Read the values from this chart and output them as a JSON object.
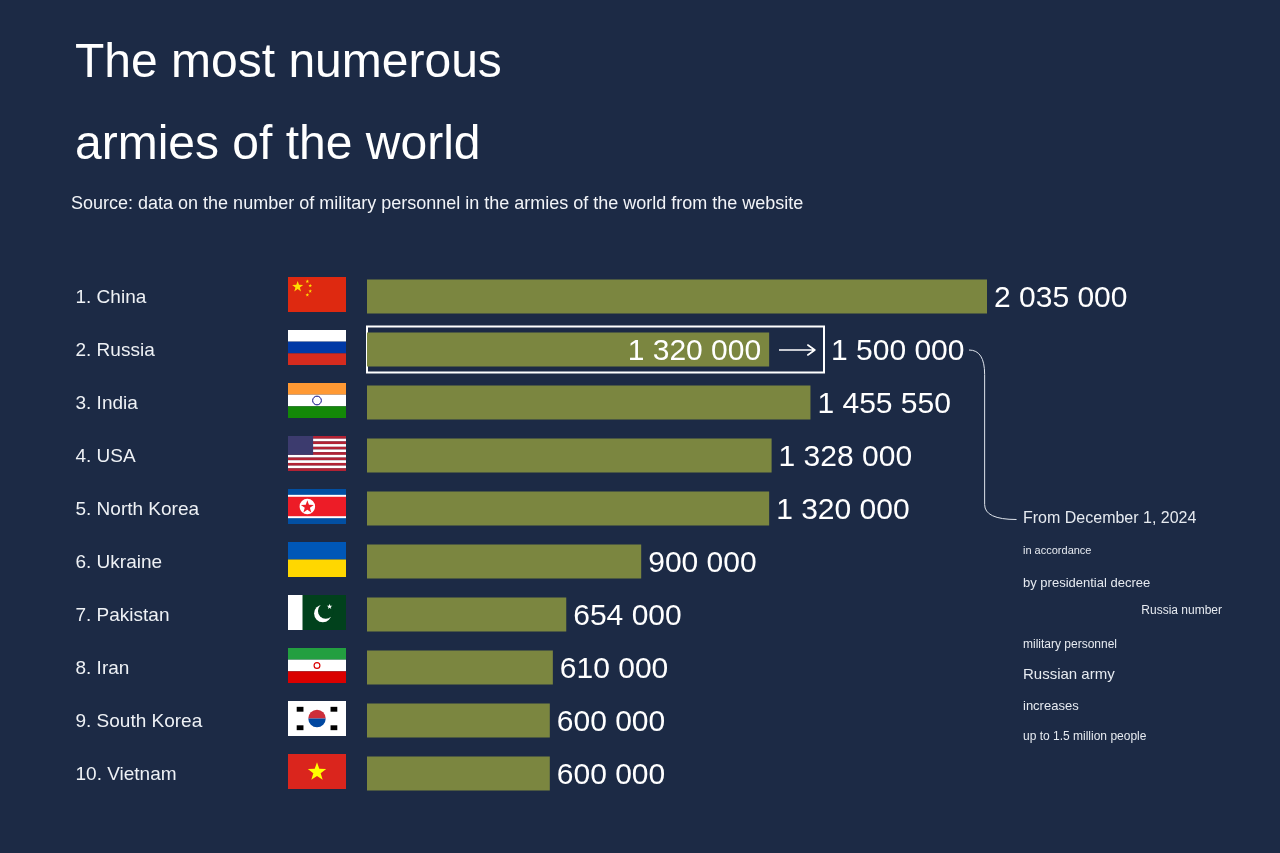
{
  "chart_data": {
    "type": "bar",
    "orientation": "horizontal",
    "title": "The most numerous armies of the world",
    "categories": [
      "1. China",
      "2. Russia",
      "3. India",
      "4. USA",
      "5. North Korea",
      "6. Ukraine",
      "7. Pakistan",
      "8. Iran",
      "9. South Korea",
      "10. Vietnam"
    ],
    "series": [
      {
        "color": "#7b8640",
        "values": [
          2035000,
          1320000,
          1455550,
          1328000,
          1320000,
          900000,
          654000,
          610000,
          600000,
          600000
        ],
        "value_labels": [
          "2 035 000",
          "1 320 000",
          "1 455 550",
          "1 328 000",
          "1 320 000",
          "900 000",
          "654 000",
          "610 000",
          "600 000",
          "600 000"
        ]
      },
      {
        "color": "#ffffff",
        "values": [
          null,
          1500000,
          null,
          null,
          null,
          null,
          null,
          null,
          null,
          null
        ],
        "value_labels": [
          null,
          "1 500 000",
          null,
          null,
          null,
          null,
          null,
          null,
          null,
          null
        ]
      }
    ],
    "annotations": [
      "Source: data on the number of military personnel in the armies of the world from the website",
      "From December 1, 2024",
      "in accordance",
      "by presidential decree",
      "Russia number",
      "military personnel",
      "Russian army",
      "increases",
      "up to 1.5 million people"
    ]
  }
}
